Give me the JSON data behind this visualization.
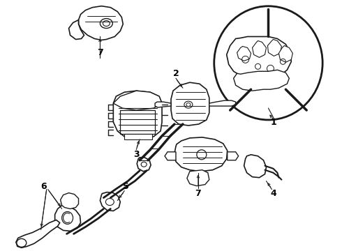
{
  "background_color": "#ffffff",
  "line_color": "#1a1a1a",
  "line_width": 1.0,
  "fig_width": 4.9,
  "fig_height": 3.6,
  "dpi": 100
}
